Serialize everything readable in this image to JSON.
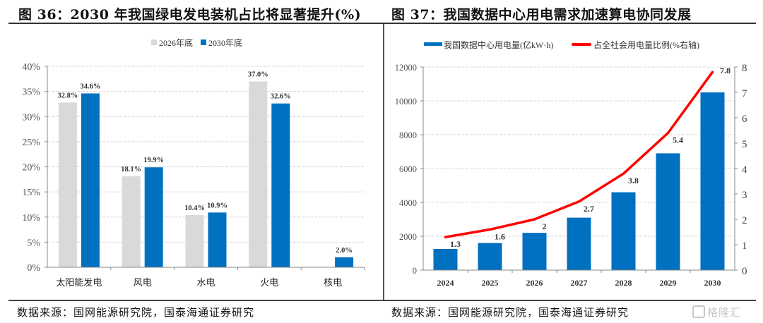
{
  "chart_data": [
    {
      "type": "bar",
      "title": "图 36：2030 年我国绿电发电装机占比将显著提升(%)",
      "categories": [
        "太阳能发电",
        "风电",
        "水电",
        "火电",
        "核电"
      ],
      "series": [
        {
          "name": "2026年底",
          "color": "#d9d9d9",
          "values": [
            32.8,
            18.1,
            10.4,
            37.0,
            null
          ],
          "labels": [
            "32.8%",
            "18.1%",
            "10.4%",
            "37.0%",
            ""
          ]
        },
        {
          "name": "2030年底",
          "color": "#0070c0",
          "values": [
            34.6,
            19.9,
            10.9,
            32.6,
            2.0
          ],
          "labels": [
            "34.6%",
            "19.9%",
            "10.9%",
            "32.6%",
            "2.0%"
          ]
        }
      ],
      "ylim": [
        0,
        40
      ],
      "yticks": [
        0,
        5,
        10,
        15,
        20,
        25,
        30,
        35,
        40
      ],
      "ytick_labels": [
        "0%",
        "5%",
        "10%",
        "15%",
        "20%",
        "25%",
        "30%",
        "35%",
        "40%"
      ],
      "xlabel": "",
      "ylabel": "",
      "grid": true,
      "legend": "top-center",
      "source": "数据来源：国网能源研究院，国泰海通证券研究"
    },
    {
      "type": "bar",
      "title": "图 37：我国数据中心用电需求加速算电协同发展",
      "categories": [
        "2024",
        "2025",
        "2026",
        "2027",
        "2028",
        "2029",
        "2030"
      ],
      "series": [
        {
          "name": "我国数据中心用电量(亿kW·h)",
          "kind": "bar",
          "axis": "left",
          "color": "#0070c0",
          "values": [
            1250,
            1600,
            2200,
            3100,
            4600,
            6900,
            10500
          ]
        },
        {
          "name": "占全社会用电量比例(%右轴)",
          "kind": "line",
          "axis": "right",
          "color": "#ff0000",
          "values": [
            1.3,
            1.6,
            2.0,
            2.7,
            3.8,
            5.4,
            7.8
          ],
          "labels": [
            "1.3",
            "1.6",
            "2",
            "2.7",
            "3.8",
            "5.4",
            "7.8"
          ]
        }
      ],
      "ylim": [
        0,
        12000
      ],
      "yticks": [
        0,
        2000,
        4000,
        6000,
        8000,
        10000,
        12000
      ],
      "ytick_labels": [
        "0",
        "2000",
        "4000",
        "6000",
        "8000",
        "10000",
        "12000"
      ],
      "y2lim": [
        0,
        8
      ],
      "y2ticks": [
        0,
        1,
        2,
        3,
        4,
        5,
        6,
        7,
        8
      ],
      "y2tick_labels": [
        "0",
        "1",
        "2",
        "3",
        "4",
        "5",
        "6",
        "7",
        "8"
      ],
      "xlabel": "",
      "ylabel": "",
      "grid": true,
      "legend": "top-center",
      "source": "数据来源：国网能源研究院，国泰海通证券研究"
    }
  ],
  "watermark": "格隆汇"
}
